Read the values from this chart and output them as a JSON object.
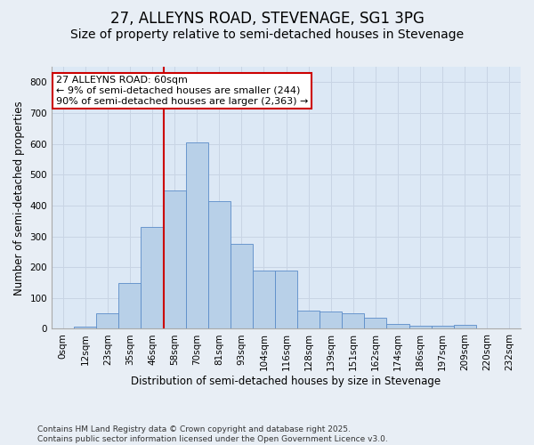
{
  "title": "27, ALLEYNS ROAD, STEVENAGE, SG1 3PG",
  "subtitle": "Size of property relative to semi-detached houses in Stevenage",
  "xlabel": "Distribution of semi-detached houses by size in Stevenage",
  "ylabel": "Number of semi-detached properties",
  "bin_labels": [
    "0sqm",
    "12sqm",
    "23sqm",
    "35sqm",
    "46sqm",
    "58sqm",
    "70sqm",
    "81sqm",
    "93sqm",
    "104sqm",
    "116sqm",
    "128sqm",
    "139sqm",
    "151sqm",
    "162sqm",
    "174sqm",
    "186sqm",
    "197sqm",
    "209sqm",
    "220sqm",
    "232sqm"
  ],
  "bar_heights": [
    2,
    8,
    50,
    148,
    330,
    450,
    605,
    415,
    275,
    190,
    190,
    60,
    55,
    50,
    35,
    15,
    10,
    10,
    13,
    0,
    0
  ],
  "bar_color": "#b8d0e8",
  "bar_edge_color": "#5b8cc8",
  "grid_color": "#c8d4e4",
  "background_color": "#dce8f5",
  "fig_background_color": "#e8eef5",
  "annotation_label": "27 ALLEYNS ROAD: 60sqm\n← 9% of semi-detached houses are smaller (244)\n90% of semi-detached houses are larger (2,363) →",
  "annotation_box_color": "#ffffff",
  "annotation_border_color": "#cc0000",
  "vline_x": 5.0,
  "ylim": [
    0,
    850
  ],
  "yticks": [
    0,
    100,
    200,
    300,
    400,
    500,
    600,
    700,
    800
  ],
  "footnote": "Contains HM Land Registry data © Crown copyright and database right 2025.\nContains public sector information licensed under the Open Government Licence v3.0.",
  "title_fontsize": 12,
  "subtitle_fontsize": 10,
  "label_fontsize": 8.5,
  "tick_fontsize": 7.5,
  "footnote_fontsize": 6.5
}
